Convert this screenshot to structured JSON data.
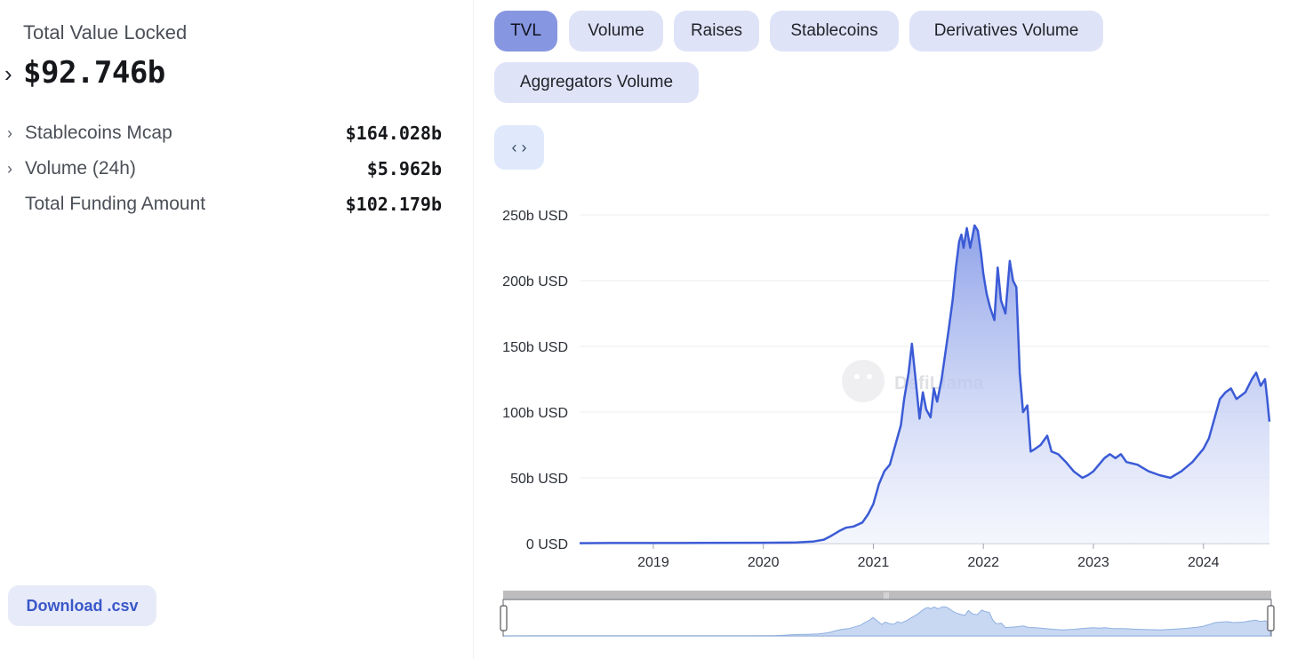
{
  "summary": {
    "tvl_label": "Total Value Locked",
    "tvl_value": "$92.746b",
    "stats": [
      {
        "label": "Stablecoins Mcap",
        "value": "$164.028b",
        "expandable": true
      },
      {
        "label": "Volume (24h)",
        "value": "$5.962b",
        "expandable": true
      },
      {
        "label": "Total Funding Amount",
        "value": "$102.179b",
        "expandable": false
      }
    ]
  },
  "download_label": "Download .csv",
  "tabs": [
    "TVL",
    "Volume",
    "Raises",
    "Stablecoins",
    "Derivatives Volume",
    "Aggregators Volume"
  ],
  "active_tab": "TVL",
  "embed_icon": "code-icon",
  "watermark": "DefiLlama",
  "colors": {
    "line": "#3b5bd6",
    "fill_top": "#8a9ee8",
    "fill_bottom": "#eef1fc",
    "active_tab": "#8796e0",
    "tab": "#dfe3f7"
  },
  "chart_data": {
    "type": "area",
    "ylim": [
      0,
      250
    ],
    "yticks": [
      "0 USD",
      "50b USD",
      "100b USD",
      "150b USD",
      "200b USD",
      "250b USD"
    ],
    "ytick_values": [
      0,
      50,
      100,
      150,
      200,
      250
    ],
    "xticks": [
      "2019",
      "2020",
      "2021",
      "2022",
      "2023",
      "2024"
    ],
    "xtick_values": [
      2019.0,
      2020.0,
      2021.0,
      2022.0,
      2023.0,
      2024.0
    ],
    "xlim": [
      2018.33,
      2024.6
    ],
    "grid": true,
    "series": [
      {
        "points": [
          [
            2018.33,
            0.3
          ],
          [
            2018.6,
            0.4
          ],
          [
            2019.0,
            0.4
          ],
          [
            2019.5,
            0.5
          ],
          [
            2020.0,
            0.6
          ],
          [
            2020.3,
            0.8
          ],
          [
            2020.45,
            1.5
          ],
          [
            2020.55,
            3
          ],
          [
            2020.62,
            6
          ],
          [
            2020.7,
            10
          ],
          [
            2020.75,
            12
          ],
          [
            2020.82,
            13
          ],
          [
            2020.9,
            16
          ],
          [
            2020.95,
            22
          ],
          [
            2021.0,
            30
          ],
          [
            2021.05,
            45
          ],
          [
            2021.1,
            55
          ],
          [
            2021.15,
            60
          ],
          [
            2021.2,
            75
          ],
          [
            2021.25,
            90
          ],
          [
            2021.28,
            110
          ],
          [
            2021.32,
            130
          ],
          [
            2021.35,
            152
          ],
          [
            2021.38,
            128
          ],
          [
            2021.42,
            95
          ],
          [
            2021.45,
            115
          ],
          [
            2021.48,
            102
          ],
          [
            2021.52,
            96
          ],
          [
            2021.55,
            118
          ],
          [
            2021.58,
            108
          ],
          [
            2021.62,
            125
          ],
          [
            2021.68,
            160
          ],
          [
            2021.72,
            185
          ],
          [
            2021.75,
            210
          ],
          [
            2021.78,
            230
          ],
          [
            2021.8,
            235
          ],
          [
            2021.82,
            225
          ],
          [
            2021.85,
            240
          ],
          [
            2021.88,
            225
          ],
          [
            2021.92,
            242
          ],
          [
            2021.95,
            238
          ],
          [
            2021.98,
            220
          ],
          [
            2022.0,
            205
          ],
          [
            2022.03,
            190
          ],
          [
            2022.06,
            180
          ],
          [
            2022.1,
            170
          ],
          [
            2022.13,
            210
          ],
          [
            2022.16,
            185
          ],
          [
            2022.2,
            175
          ],
          [
            2022.24,
            215
          ],
          [
            2022.27,
            200
          ],
          [
            2022.3,
            195
          ],
          [
            2022.33,
            130
          ],
          [
            2022.36,
            100
          ],
          [
            2022.4,
            105
          ],
          [
            2022.43,
            70
          ],
          [
            2022.47,
            72
          ],
          [
            2022.52,
            75
          ],
          [
            2022.58,
            82
          ],
          [
            2022.62,
            70
          ],
          [
            2022.68,
            68
          ],
          [
            2022.75,
            62
          ],
          [
            2022.82,
            55
          ],
          [
            2022.9,
            50
          ],
          [
            2022.95,
            52
          ],
          [
            2023.0,
            55
          ],
          [
            2023.05,
            60
          ],
          [
            2023.1,
            65
          ],
          [
            2023.15,
            68
          ],
          [
            2023.2,
            65
          ],
          [
            2023.25,
            68
          ],
          [
            2023.3,
            62
          ],
          [
            2023.4,
            60
          ],
          [
            2023.5,
            55
          ],
          [
            2023.6,
            52
          ],
          [
            2023.7,
            50
          ],
          [
            2023.8,
            55
          ],
          [
            2023.9,
            62
          ],
          [
            2024.0,
            72
          ],
          [
            2024.05,
            80
          ],
          [
            2024.1,
            95
          ],
          [
            2024.15,
            110
          ],
          [
            2024.2,
            115
          ],
          [
            2024.25,
            118
          ],
          [
            2024.3,
            110
          ],
          [
            2024.38,
            115
          ],
          [
            2024.44,
            125
          ],
          [
            2024.48,
            130
          ],
          [
            2024.52,
            120
          ],
          [
            2024.56,
            125
          ],
          [
            2024.58,
            110
          ],
          [
            2024.6,
            92.7
          ]
        ]
      }
    ]
  }
}
